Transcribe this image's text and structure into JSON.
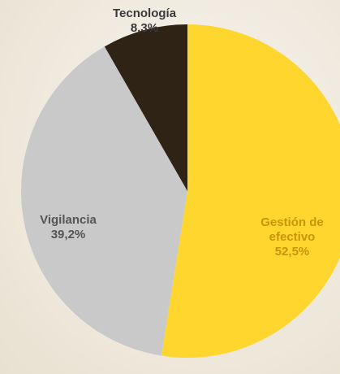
{
  "chart_data": {
    "type": "pie",
    "categories": [
      "Gestión de efectivo",
      "Vigilancia",
      "Tecnología"
    ],
    "values": [
      52.5,
      39.2,
      8.3
    ],
    "value_labels": [
      "52,5%",
      "39,2%",
      "8,3%"
    ],
    "colors": [
      "#fed62e",
      "#c9c9c9",
      "#2f2316"
    ]
  }
}
